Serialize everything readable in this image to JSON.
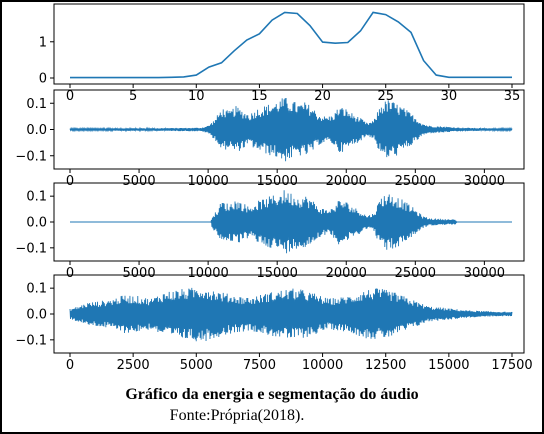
{
  "figure": {
    "caption": "Gráfico da energia e segmentação do áudio",
    "source": "Fonte:Própria(2018).",
    "line_color": "#1f77b4"
  },
  "chart_data": [
    {
      "type": "line",
      "series": [
        {
          "x": [
            0,
            1,
            2,
            3,
            4,
            5,
            6,
            7,
            8,
            9,
            10,
            11,
            12,
            13,
            14,
            15,
            16,
            17,
            18,
            19,
            20,
            21,
            22,
            23,
            24,
            25,
            26,
            27,
            28,
            29,
            30,
            31,
            32,
            33,
            34,
            35
          ],
          "values": [
            0.01,
            0.01,
            0.01,
            0.01,
            0.01,
            0.01,
            0.01,
            0.01,
            0.02,
            0.03,
            0.08,
            0.3,
            0.42,
            0.75,
            1.05,
            1.22,
            1.6,
            1.81,
            1.78,
            1.45,
            0.99,
            0.96,
            0.98,
            1.3,
            1.81,
            1.75,
            1.55,
            1.26,
            0.48,
            0.08,
            0.02,
            0.02,
            0.02,
            0.02,
            0.02,
            0.02
          ]
        }
      ],
      "xlim": [
        0,
        35
      ],
      "ylim": [
        0,
        1.85
      ],
      "xticks": [
        "0",
        "5",
        "10",
        "15",
        "20",
        "25",
        "30",
        "35"
      ],
      "xtick_values": [
        0,
        5,
        10,
        15,
        20,
        25,
        30,
        35
      ],
      "yticks": [
        "0",
        "1"
      ],
      "ytick_values": [
        0,
        1
      ]
    },
    {
      "type": "line",
      "series": [
        {
          "envelope": [
            [
              0,
              0.004
            ],
            [
              2000,
              0.004
            ],
            [
              4000,
              0.005
            ],
            [
              6000,
              0.005
            ],
            [
              8000,
              0.006
            ],
            [
              9500,
              0.007
            ],
            [
              10000,
              0.015
            ],
            [
              10500,
              0.04
            ],
            [
              11000,
              0.085
            ],
            [
              11500,
              0.07
            ],
            [
              12000,
              0.09
            ],
            [
              12500,
              0.075
            ],
            [
              13000,
              0.06
            ],
            [
              13500,
              0.08
            ],
            [
              14000,
              0.09
            ],
            [
              14500,
              0.1
            ],
            [
              15000,
              0.11
            ],
            [
              15500,
              0.125
            ],
            [
              16000,
              0.115
            ],
            [
              16500,
              0.1
            ],
            [
              17000,
              0.105
            ],
            [
              17500,
              0.09
            ],
            [
              18000,
              0.06
            ],
            [
              18500,
              0.05
            ],
            [
              19000,
              0.055
            ],
            [
              19500,
              0.09
            ],
            [
              20000,
              0.08
            ],
            [
              20500,
              0.06
            ],
            [
              21000,
              0.045
            ],
            [
              21500,
              0.025
            ],
            [
              22000,
              0.035
            ],
            [
              22500,
              0.1
            ],
            [
              23000,
              0.115
            ],
            [
              23500,
              0.105
            ],
            [
              24000,
              0.09
            ],
            [
              24500,
              0.07
            ],
            [
              25000,
              0.05
            ],
            [
              25500,
              0.025
            ],
            [
              26000,
              0.015
            ],
            [
              27000,
              0.012
            ],
            [
              28000,
              0.008
            ],
            [
              30000,
              0.005
            ],
            [
              32000,
              0.004
            ]
          ]
        }
      ],
      "xlim": [
        0,
        32000
      ],
      "ylim": [
        -0.12,
        0.12
      ],
      "xticks": [
        "0",
        "5000",
        "10000",
        "15000",
        "20000",
        "25000",
        "30000"
      ],
      "xtick_values": [
        0,
        5000,
        10000,
        15000,
        20000,
        25000,
        30000
      ],
      "yticks": [
        "0.1",
        "0.0",
        "−0.1"
      ],
      "ytick_values": [
        0.1,
        0,
        -0.1
      ]
    },
    {
      "type": "line",
      "series": [
        {
          "envelope": [
            [
              0,
              0
            ],
            [
              10200,
              0
            ],
            [
              10300,
              0.03
            ],
            [
              10600,
              0.04
            ],
            [
              11000,
              0.085
            ],
            [
              11500,
              0.07
            ],
            [
              12000,
              0.09
            ],
            [
              12500,
              0.075
            ],
            [
              13000,
              0.06
            ],
            [
              13500,
              0.08
            ],
            [
              14000,
              0.09
            ],
            [
              14500,
              0.1
            ],
            [
              15000,
              0.11
            ],
            [
              15500,
              0.125
            ],
            [
              16000,
              0.115
            ],
            [
              16500,
              0.1
            ],
            [
              17000,
              0.105
            ],
            [
              17500,
              0.09
            ],
            [
              18000,
              0.06
            ],
            [
              18500,
              0.05
            ],
            [
              19000,
              0.055
            ],
            [
              19500,
              0.09
            ],
            [
              20000,
              0.08
            ],
            [
              20500,
              0.06
            ],
            [
              21000,
              0.045
            ],
            [
              21500,
              0.025
            ],
            [
              22000,
              0.035
            ],
            [
              22500,
              0.1
            ],
            [
              23000,
              0.115
            ],
            [
              23500,
              0.105
            ],
            [
              24000,
              0.09
            ],
            [
              24500,
              0.07
            ],
            [
              25000,
              0.05
            ],
            [
              25500,
              0.025
            ],
            [
              26000,
              0.015
            ],
            [
              27000,
              0.012
            ],
            [
              27900,
              0.01
            ],
            [
              28000,
              0
            ],
            [
              32000,
              0
            ]
          ]
        }
      ],
      "xlim": [
        0,
        32000
      ],
      "ylim": [
        -0.12,
        0.12
      ],
      "xticks": [
        "0",
        "5000",
        "10000",
        "15000",
        "20000",
        "25000",
        "30000"
      ],
      "xtick_values": [
        0,
        5000,
        10000,
        15000,
        20000,
        25000,
        30000
      ],
      "yticks": [
        "0.1",
        "0.0",
        "−0.1"
      ],
      "ytick_values": [
        0.1,
        0,
        -0.1
      ]
    },
    {
      "type": "line",
      "series": [
        {
          "envelope": [
            [
              0,
              0.02
            ],
            [
              300,
              0.03
            ],
            [
              700,
              0.045
            ],
            [
              1200,
              0.05
            ],
            [
              1700,
              0.06
            ],
            [
              2200,
              0.075
            ],
            [
              2700,
              0.07
            ],
            [
              3200,
              0.06
            ],
            [
              3700,
              0.085
            ],
            [
              4200,
              0.095
            ],
            [
              4700,
              0.1
            ],
            [
              5200,
              0.11
            ],
            [
              5700,
              0.095
            ],
            [
              6200,
              0.08
            ],
            [
              6700,
              0.07
            ],
            [
              7200,
              0.065
            ],
            [
              7700,
              0.08
            ],
            [
              8200,
              0.09
            ],
            [
              8700,
              0.1
            ],
            [
              9200,
              0.095
            ],
            [
              9700,
              0.08
            ],
            [
              10200,
              0.06
            ],
            [
              10700,
              0.065
            ],
            [
              11200,
              0.075
            ],
            [
              11700,
              0.095
            ],
            [
              12200,
              0.1
            ],
            [
              12700,
              0.09
            ],
            [
              13200,
              0.07
            ],
            [
              13700,
              0.05
            ],
            [
              14200,
              0.03
            ],
            [
              14700,
              0.025
            ],
            [
              15200,
              0.02
            ],
            [
              15700,
              0.015
            ],
            [
              16200,
              0.012
            ],
            [
              16700,
              0.01
            ],
            [
              17500,
              0.008
            ]
          ]
        }
      ],
      "xlim": [
        0,
        17500
      ],
      "ylim": [
        -0.12,
        0.12
      ],
      "xticks": [
        "0",
        "2500",
        "5000",
        "7500",
        "10000",
        "12500",
        "15000",
        "17500"
      ],
      "xtick_values": [
        0,
        2500,
        5000,
        7500,
        10000,
        12500,
        15000,
        17500
      ],
      "yticks": [
        "0.1",
        "0.0",
        "−0.1"
      ],
      "ytick_values": [
        0.1,
        0,
        -0.1
      ]
    }
  ]
}
